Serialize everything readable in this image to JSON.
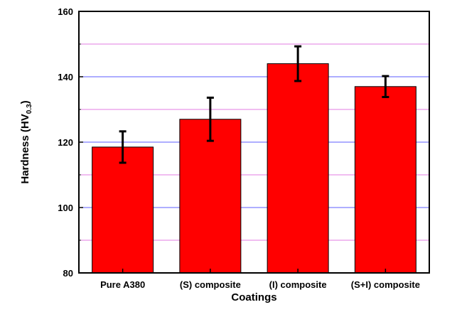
{
  "chart_data": {
    "type": "bar",
    "title": "",
    "xlabel": "Coatings",
    "ylabel": "Hardness (HV",
    "ylabel_subscript": "0.3",
    "ylabel_suffix": ")",
    "categories": [
      "Pure A380",
      "(S) composite",
      "(I) composite",
      "(S+I) composite"
    ],
    "values": [
      118.5,
      127,
      144,
      137
    ],
    "errors": [
      4.8,
      6.6,
      5.3,
      3.2
    ],
    "ylim": [
      80,
      160
    ],
    "yticks": [
      80,
      100,
      120,
      140,
      160
    ],
    "minor_grid": [
      90,
      110,
      130,
      150
    ],
    "grid": true,
    "colors": {
      "bar": "#ff0000",
      "bar_edge": "#000000",
      "major_grid": "#5d5dff",
      "minor_grid": "#e37be3",
      "error_bar": "#000000"
    }
  }
}
